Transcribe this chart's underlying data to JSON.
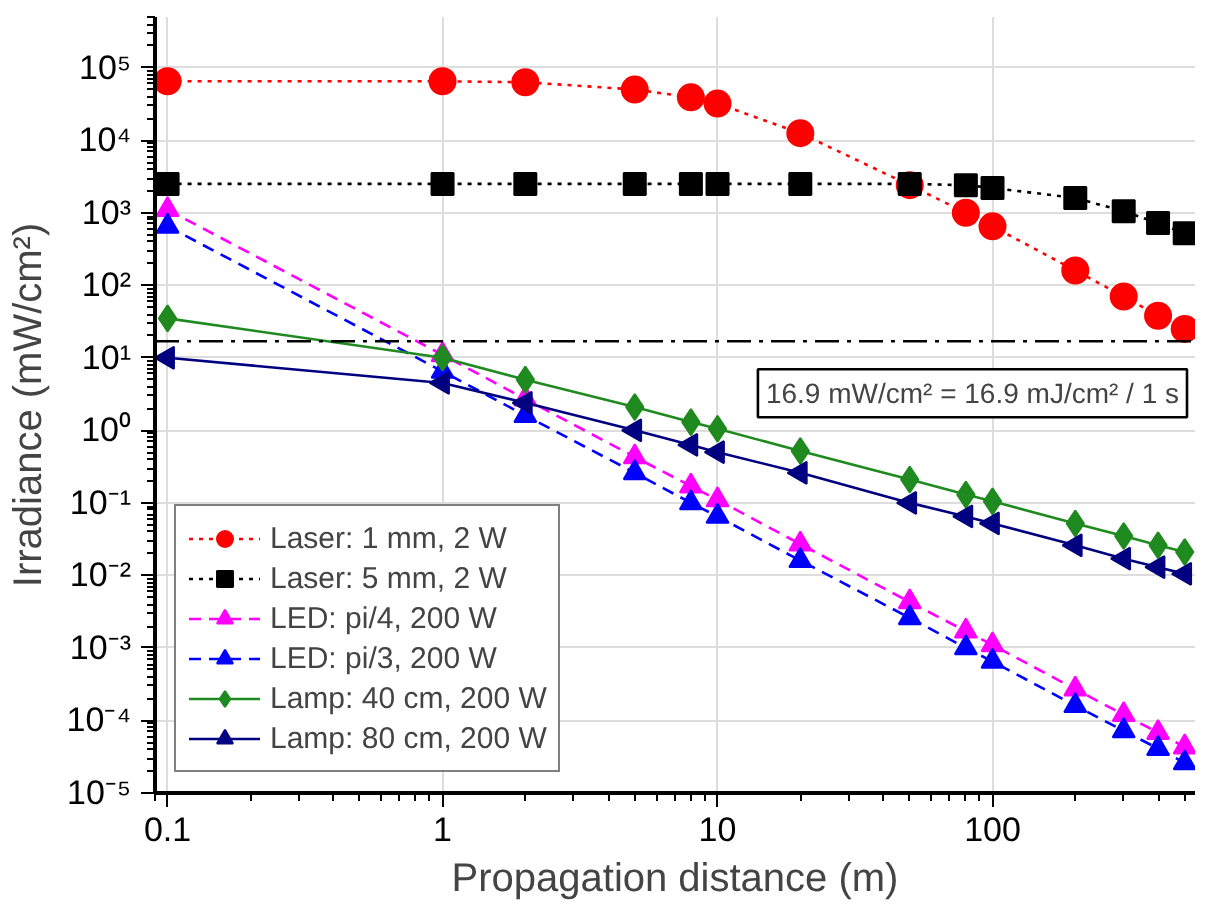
{
  "chart_data": {
    "type": "line",
    "xlabel": "Propagation distance (m)",
    "ylabel": "Irradiance (mW/cm²)",
    "log": "xy",
    "grid": true,
    "legend": "bottom left",
    "x": [
      0.1,
      1,
      2,
      5,
      8,
      10,
      20,
      50,
      80,
      100,
      200,
      300,
      400,
      500
    ],
    "xlim": [
      0.09,
      545
    ],
    "ylim": [
      1e-05,
      500000
    ],
    "xticks": [
      {
        "value": 0.1,
        "label": "0.1"
      },
      1,
      10,
      100
    ],
    "yticks": [
      {
        "value": 1e-05,
        "label": "10⁻⁵"
      },
      {
        "value": 0.0001,
        "label": "10⁻⁴"
      },
      {
        "value": 0.001,
        "label": "10⁻³"
      },
      {
        "value": 0.01,
        "label": "10⁻²"
      },
      {
        "value": 0.1,
        "label": "10⁻¹"
      },
      {
        "value": 1,
        "label": "10⁰"
      },
      {
        "value": 10,
        "label": "10¹"
      },
      {
        "value": 100,
        "label": "10²"
      },
      {
        "value": 1000,
        "label": "10³"
      },
      {
        "value": 10000,
        "label": "10⁴"
      },
      {
        "value": 100000,
        "label": "10⁵"
      }
    ],
    "series": [
      {
        "name": "Laser: 1 mm, 2 W",
        "color": "#ff0000",
        "marker": "circle",
        "line_style": "dotted",
        "values": [
          65000,
          65000,
          63000,
          50000,
          39000,
          32000,
          12500,
          2400,
          1000,
          650,
          160,
          70,
          38,
          25
        ]
      },
      {
        "name": "Laser: 5 mm, 2 W",
        "color": "#000000",
        "marker": "square",
        "line_style": "dotted",
        "values": [
          2500,
          2500,
          2500,
          2500,
          2500,
          2500,
          2500,
          2500,
          2400,
          2200,
          1600,
          1050,
          720,
          520
        ]
      },
      {
        "name": "LED: pi/4, 200 W",
        "color": "#ff00ff",
        "marker": "triangle",
        "line_style": "dashed",
        "values": [
          1100,
          11,
          2.7,
          0.43,
          0.17,
          0.11,
          0.027,
          0.0043,
          0.0017,
          0.0011,
          0.00027,
          0.00012,
          6.8e-05,
          4.3e-05
        ]
      },
      {
        "name": "LED: pi/3, 200 W",
        "color": "#0000ff",
        "marker": "triangle",
        "line_style": "dashed",
        "values": [
          650,
          6.5,
          1.6,
          0.26,
          0.1,
          0.065,
          0.016,
          0.0026,
          0.001,
          0.00065,
          0.00016,
          7.2e-05,
          4.1e-05,
          2.6e-05
        ]
      },
      {
        "name": "Lamp: 40 cm, 200 W",
        "color": "#1f8a1f",
        "marker": "diamond",
        "line_style": "solid",
        "values": [
          35,
          10,
          5,
          2.1,
          1.3,
          1.05,
          0.52,
          0.21,
          0.13,
          0.105,
          0.052,
          0.035,
          0.026,
          0.021
        ]
      },
      {
        "name": "Lamp: 80 cm, 200 W",
        "color": "#000080",
        "marker": "triangle_left",
        "line_style": "solid",
        "values": [
          10,
          4.5,
          2.4,
          1.0,
          0.63,
          0.5,
          0.26,
          0.1,
          0.065,
          0.052,
          0.026,
          0.017,
          0.013,
          0.0105
        ]
      }
    ],
    "ref_lines": [
      {
        "axis": "y",
        "value": 16.9,
        "line_style": "dashdot",
        "color": "#000000",
        "label": "16.9 mW/cm² = 16.9 mJ/cm² / 1 s"
      }
    ]
  }
}
